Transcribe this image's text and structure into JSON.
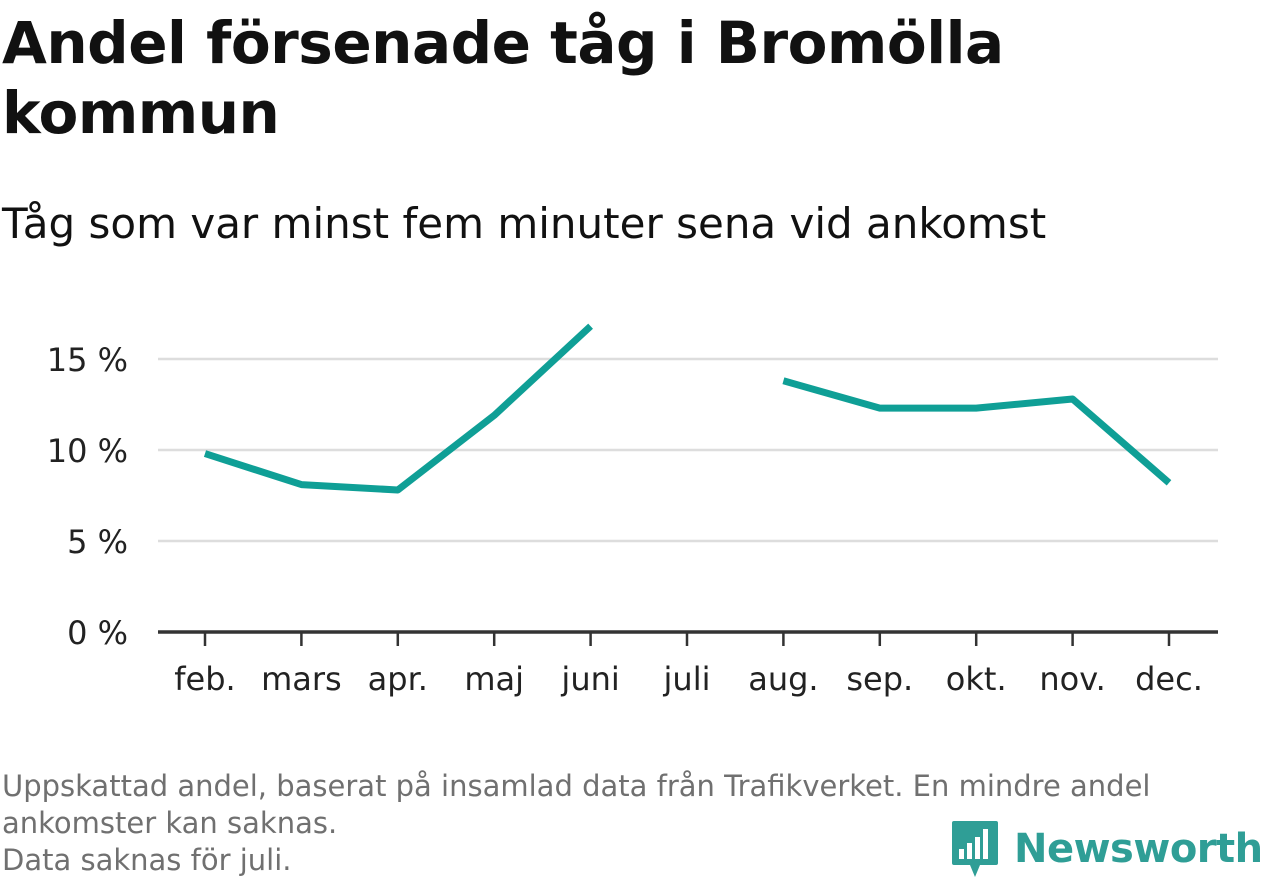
{
  "header": {
    "title": "Andel försenade tåg i Bromölla kommun",
    "subtitle": "Tåg som var minst fem minuter sena vid ankomst"
  },
  "footer": {
    "note_line1": "Uppskattad andel, baserat på insamlad data från Trafikverket. En mindre andel ankomster kan saknas.",
    "note_line2": "Data saknas för juli.",
    "brand_name": "Newsworthy",
    "brand_icon": "bar-chart-speech-bubble-icon"
  },
  "colors": {
    "line": "#0f9f96",
    "grid": "#dddddd",
    "axis": "#333333",
    "brand": "#2f9e96"
  },
  "chart_data": {
    "type": "line",
    "title": "Andel försenade tåg i Bromölla kommun",
    "subtitle": "Tåg som var minst fem minuter sena vid ankomst",
    "categories": [
      "feb.",
      "mars",
      "apr.",
      "maj",
      "juni",
      "juli",
      "aug.",
      "sep.",
      "okt.",
      "nov.",
      "dec."
    ],
    "series": [
      {
        "values": [
          9.8,
          8.1,
          7.8,
          11.9,
          16.8,
          null,
          13.8,
          12.3,
          12.3,
          12.8,
          8.2
        ]
      }
    ],
    "y_ticks": [
      0,
      5,
      10,
      15
    ],
    "y_tick_labels": [
      "0 %",
      "5 %",
      "10 %",
      "15 %"
    ],
    "ylim": [
      0,
      17
    ],
    "grid": true,
    "legend": "none"
  }
}
